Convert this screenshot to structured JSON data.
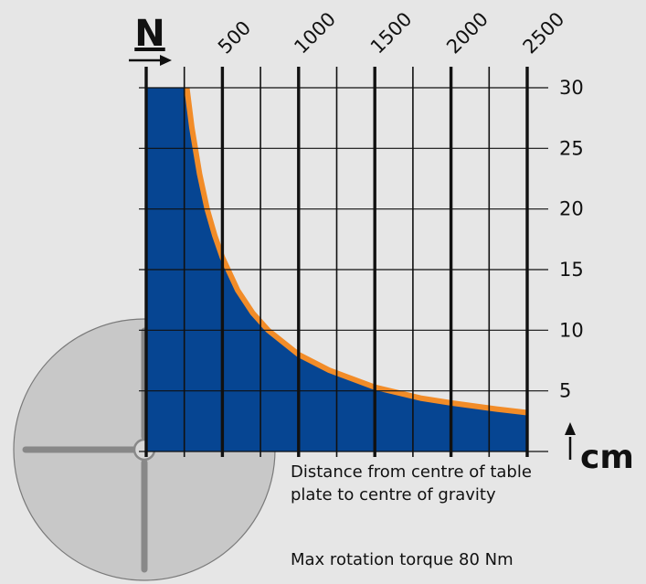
{
  "colors": {
    "background": "#e6e6e6",
    "area_fill": "#064592",
    "curve": "#f28c28",
    "grid": "#111111",
    "table_disc": "#c8c8c8",
    "table_slot": "#888888"
  },
  "chart_data": {
    "type": "area",
    "x_axis": {
      "unit_label": "N",
      "position": "top",
      "ticks": [
        "500",
        "1000",
        "1500",
        "2000",
        "2500"
      ],
      "tick_values": [
        500,
        1000,
        1500,
        2000,
        2500
      ],
      "range": [
        0,
        2500
      ]
    },
    "y_axis": {
      "unit_label": "cm",
      "position": "right",
      "ticks": [
        "30",
        "25",
        "20",
        "15",
        "10",
        "5"
      ],
      "tick_values": [
        30,
        25,
        20,
        15,
        10,
        5
      ],
      "range": [
        0,
        30
      ]
    },
    "grid": true,
    "series": [
      {
        "x": [
          0,
          267,
          300,
          350,
          400,
          450,
          500,
          600,
          700,
          800,
          1000,
          1200,
          1500,
          1800,
          2000,
          2300,
          2500
        ],
        "y": [
          30,
          30,
          26.7,
          22.9,
          20,
          17.8,
          16,
          13.3,
          11.4,
          10,
          8,
          6.7,
          5.3,
          4.4,
          4,
          3.5,
          3.2
        ]
      }
    ]
  },
  "captions": {
    "distance": "Distance from centre of table plate to centre of gravity",
    "torque": "Max rotation torque 80 Nm"
  }
}
